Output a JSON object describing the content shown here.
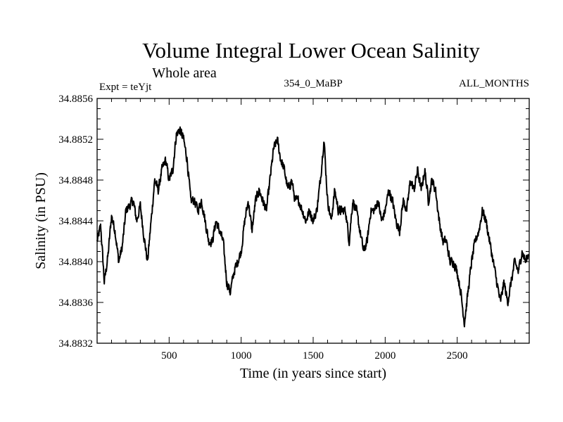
{
  "chart_data": {
    "type": "line",
    "title": "Volume Integral Lower Ocean Salinity",
    "subtitle": "Whole area",
    "experiment": "Expt = teYjt",
    "run_label": "354_0_MaBP",
    "period_label": "ALL_MONTHS",
    "xlabel": "Time (in years since start)",
    "ylabel": "Salinity (in PSU)",
    "xlim": [
      0,
      3000
    ],
    "ylim": [
      34.8832,
      34.8856
    ],
    "x_ticks": [
      500,
      1000,
      1500,
      2000,
      2500
    ],
    "x_tick_labels": [
      "500",
      "1000",
      "1500",
      "2000",
      "2500"
    ],
    "y_ticks": [
      34.8832,
      34.8836,
      34.884,
      34.8844,
      34.8848,
      34.8852,
      34.8856
    ],
    "y_tick_labels": [
      "34.8832",
      "34.8836",
      "34.8840",
      "34.8844",
      "34.8848",
      "34.8852",
      "34.8856"
    ],
    "grid": false,
    "line_color": "#000000",
    "series": [
      {
        "name": "salinity",
        "x": [
          0,
          25,
          50,
          75,
          100,
          125,
          150,
          175,
          200,
          225,
          250,
          275,
          300,
          325,
          350,
          375,
          400,
          425,
          450,
          475,
          500,
          525,
          550,
          575,
          600,
          625,
          650,
          675,
          700,
          725,
          750,
          775,
          800,
          825,
          850,
          875,
          900,
          925,
          950,
          975,
          1000,
          1025,
          1050,
          1075,
          1100,
          1125,
          1150,
          1175,
          1200,
          1225,
          1250,
          1275,
          1300,
          1325,
          1350,
          1375,
          1400,
          1425,
          1450,
          1475,
          1500,
          1525,
          1550,
          1575,
          1600,
          1625,
          1650,
          1675,
          1700,
          1725,
          1750,
          1775,
          1800,
          1825,
          1850,
          1875,
          1900,
          1925,
          1950,
          1975,
          2000,
          2025,
          2050,
          2075,
          2100,
          2125,
          2150,
          2175,
          2200,
          2225,
          2250,
          2275,
          2300,
          2325,
          2350,
          2375,
          2400,
          2425,
          2450,
          2475,
          2500,
          2525,
          2550,
          2575,
          2600,
          2625,
          2650,
          2675,
          2700,
          2725,
          2750,
          2775,
          2800,
          2825,
          2850,
          2875,
          2900,
          2925,
          2950,
          2975,
          3000
        ],
        "values": [
          34.8842,
          34.88435,
          34.8838,
          34.88405,
          34.88445,
          34.8843,
          34.884,
          34.88415,
          34.8845,
          34.88455,
          34.8846,
          34.8844,
          34.88455,
          34.88425,
          34.884,
          34.8844,
          34.8848,
          34.8847,
          34.8849,
          34.885,
          34.8848,
          34.8849,
          34.88525,
          34.8853,
          34.8852,
          34.885,
          34.8846,
          34.8846,
          34.8845,
          34.8846,
          34.8844,
          34.8842,
          34.8842,
          34.8844,
          34.8843,
          34.8842,
          34.8838,
          34.8837,
          34.8839,
          34.884,
          34.8841,
          34.8844,
          34.8846,
          34.8843,
          34.8846,
          34.8847,
          34.8846,
          34.8845,
          34.8848,
          34.8851,
          34.8852,
          34.885,
          34.8849,
          34.8847,
          34.8848,
          34.8846,
          34.8846,
          34.8845,
          34.8844,
          34.8845,
          34.8844,
          34.8845,
          34.8848,
          34.8852,
          34.8846,
          34.8844,
          34.8847,
          34.8845,
          34.8845,
          34.8845,
          34.8842,
          34.8846,
          34.8845,
          34.8843,
          34.8841,
          34.8842,
          34.8845,
          34.8845,
          34.8846,
          34.8844,
          34.8845,
          34.8847,
          34.8846,
          34.8844,
          34.8843,
          34.8846,
          34.8845,
          34.8848,
          34.8847,
          34.8849,
          34.8847,
          34.8849,
          34.8846,
          34.8848,
          34.8847,
          34.8844,
          34.8842,
          34.8842,
          34.884,
          34.884,
          34.8839,
          34.8837,
          34.8834,
          34.8837,
          34.884,
          34.8842,
          34.8843,
          34.8845,
          34.8844,
          34.8842,
          34.884,
          34.8838,
          34.8836,
          34.8838,
          34.8836,
          34.8838,
          34.884,
          34.8839,
          34.8841,
          34.884,
          34.8841
        ]
      }
    ]
  }
}
